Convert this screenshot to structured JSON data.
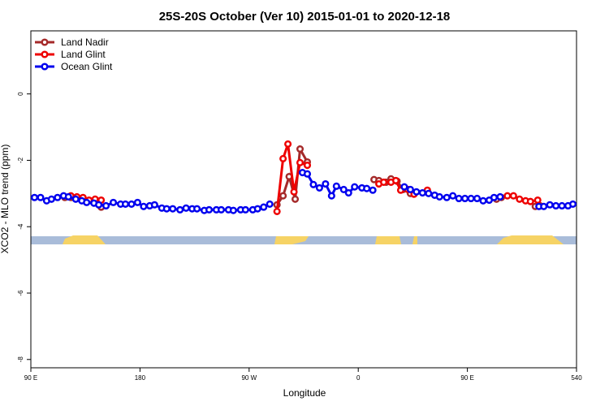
{
  "chart_data": {
    "type": "line",
    "title": "25S-20S October (Ver 10)   2015-01-01 to 2020-12-18",
    "xlabel": "Longitude",
    "ylabel": "XCO2 - MLO trend (ppm)",
    "xlim": [
      90,
      540
    ],
    "ylim": [
      -8.25,
      1.9
    ],
    "xticks": [
      {
        "value": 90,
        "label": "90 E"
      },
      180,
      {
        "value": 270,
        "label": "90 W"
      },
      {
        "value": 360,
        "label": "0"
      },
      {
        "value": 450,
        "label": "90 E"
      },
      540
    ],
    "yticks": [
      0,
      -2,
      -4,
      -6,
      -8
    ],
    "legend": "top-left",
    "series": [
      {
        "name": "Land Nadir",
        "color": "#a52a2a",
        "x": [
          118,
          123,
          145,
          148,
          null,
          293,
          298,
          303,
          308,
          312,
          318,
          null,
          373,
          377,
          383,
          387,
          392,
          397,
          403,
          null,
          474,
          478,
          null,
          506,
          510
        ],
        "values": [
          -3.12,
          -3.12,
          -3.29,
          -3.41,
          null,
          -3.34,
          -3.07,
          -2.49,
          -3.17,
          -1.66,
          -2.05,
          null,
          -2.58,
          -2.61,
          -2.66,
          -2.56,
          -2.63,
          -2.88,
          -3.0,
          null,
          -3.17,
          -3.12,
          null,
          -3.39,
          -3.37
        ]
      },
      {
        "name": "Land Glint",
        "color": "#ee0000",
        "x": [
          123,
          128,
          133,
          138,
          143,
          148,
          null,
          293,
          298,
          302,
          307,
          312,
          318,
          null,
          377,
          381,
          387,
          391,
          395,
          401,
          406,
          417,
          null,
          483,
          488,
          493,
          498,
          502,
          508
        ],
        "values": [
          -3.07,
          -3.1,
          -3.12,
          -3.2,
          -3.17,
          -3.2,
          null,
          -3.54,
          -1.95,
          -1.51,
          -2.95,
          -2.07,
          -2.15,
          null,
          -2.71,
          -2.66,
          -2.66,
          -2.61,
          -2.9,
          -2.88,
          -3.02,
          -2.9,
          null,
          -3.07,
          -3.07,
          -3.17,
          -3.22,
          -3.24,
          -3.2
        ]
      },
      {
        "name": "Ocean Glint",
        "color": "#0000ee",
        "x": [
          93,
          98,
          103,
          107,
          112,
          117,
          121,
          127,
          132,
          136,
          142,
          146,
          152,
          158,
          164,
          168,
          173,
          178,
          183,
          188,
          192,
          198,
          202,
          207,
          213,
          218,
          223,
          227,
          233,
          237,
          243,
          247,
          253,
          257,
          263,
          267,
          273,
          277,
          282,
          287,
          null,
          314,
          318,
          323,
          328,
          333,
          338,
          342,
          348,
          352,
          357,
          363,
          367,
          372,
          null,
          398,
          403,
          408,
          413,
          418,
          423,
          427,
          433,
          438,
          443,
          448,
          453,
          458,
          463,
          468,
          472,
          477,
          null,
          509,
          513,
          518,
          523,
          528,
          533,
          537
        ],
        "values": [
          -3.12,
          -3.12,
          -3.22,
          -3.17,
          -3.12,
          -3.07,
          -3.1,
          -3.17,
          -3.22,
          -3.27,
          -3.29,
          -3.34,
          -3.37,
          -3.27,
          -3.32,
          -3.32,
          -3.32,
          -3.27,
          -3.39,
          -3.37,
          -3.34,
          -3.44,
          -3.46,
          -3.46,
          -3.49,
          -3.44,
          -3.46,
          -3.46,
          -3.51,
          -3.49,
          -3.49,
          -3.49,
          -3.49,
          -3.51,
          -3.49,
          -3.49,
          -3.49,
          -3.46,
          -3.41,
          -3.32,
          null,
          -2.37,
          -2.41,
          -2.73,
          -2.83,
          -2.71,
          -3.07,
          -2.78,
          -2.88,
          -2.98,
          -2.8,
          -2.83,
          -2.85,
          -2.9,
          null,
          -2.8,
          -2.88,
          -2.95,
          -2.98,
          -3.0,
          -3.05,
          -3.1,
          -3.12,
          -3.07,
          -3.15,
          -3.15,
          -3.15,
          -3.15,
          -3.22,
          -3.2,
          -3.12,
          -3.1,
          null,
          -3.39,
          -3.39,
          -3.34,
          -3.37,
          -3.37,
          -3.37,
          -3.32
        ]
      }
    ]
  }
}
